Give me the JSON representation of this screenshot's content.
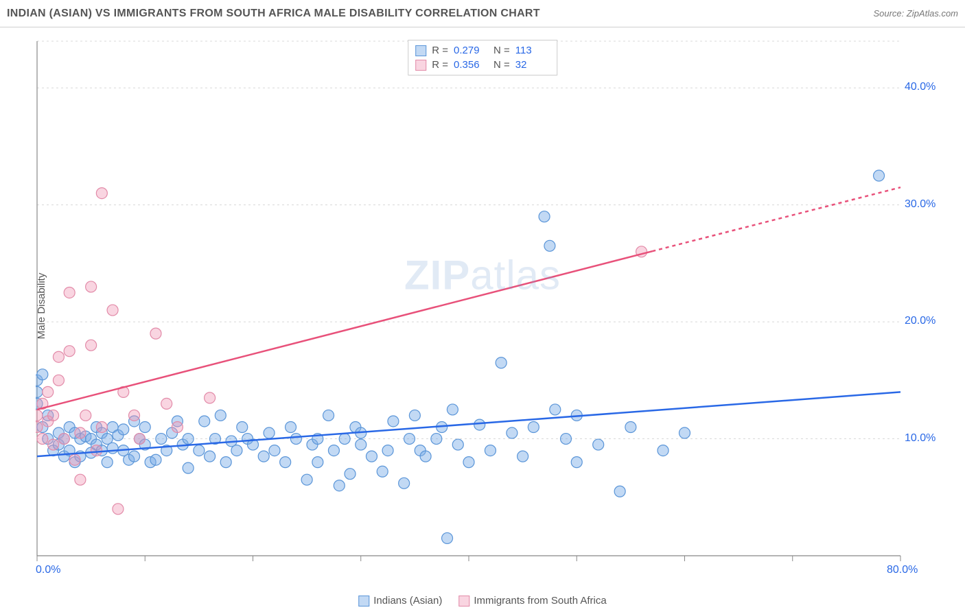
{
  "title": "INDIAN (ASIAN) VS IMMIGRANTS FROM SOUTH AFRICA MALE DISABILITY CORRELATION CHART",
  "source": "Source: ZipAtlas.com",
  "y_axis_label": "Male Disability",
  "watermark_zip": "ZIP",
  "watermark_atlas": "atlas",
  "chart": {
    "type": "scatter",
    "xlim": [
      0,
      80
    ],
    "ylim": [
      0,
      44
    ],
    "x_ticks": [
      0,
      80
    ],
    "x_tick_labels": [
      "0.0%",
      "80.0%"
    ],
    "y_ticks": [
      10,
      20,
      30,
      40
    ],
    "y_tick_labels": [
      "10.0%",
      "20.0%",
      "30.0%",
      "40.0%"
    ],
    "grid_color": "#d8d8d8",
    "axis_color": "#888888",
    "background_color": "#ffffff",
    "tick_label_color": "#2968e6",
    "marker_radius": 8,
    "marker_stroke_width": 1.2,
    "trend_line_width": 2.5,
    "series": [
      {
        "name": "Indians (Asian)",
        "fill_color": "rgba(120,170,230,0.45)",
        "stroke_color": "#5a95d8",
        "trend_color": "#2968e6",
        "R": "0.279",
        "N": "113",
        "trend": {
          "x1": 0,
          "y1": 8.5,
          "x2": 80,
          "y2": 14.0,
          "dashed_from_x": null
        },
        "points": [
          [
            0,
            14
          ],
          [
            0,
            15
          ],
          [
            0,
            13
          ],
          [
            0.5,
            15.5
          ],
          [
            0.5,
            11
          ],
          [
            1,
            10
          ],
          [
            1,
            12
          ],
          [
            1.5,
            9
          ],
          [
            2,
            9.5
          ],
          [
            2,
            10.5
          ],
          [
            2.5,
            8.5
          ],
          [
            2.5,
            10
          ],
          [
            3,
            9
          ],
          [
            3,
            11
          ],
          [
            3.5,
            10.5
          ],
          [
            3.5,
            8
          ],
          [
            4,
            8.5
          ],
          [
            4,
            10
          ],
          [
            4.5,
            10.2
          ],
          [
            5,
            8.8
          ],
          [
            5,
            10
          ],
          [
            5.5,
            9.5
          ],
          [
            5.5,
            11
          ],
          [
            6,
            9
          ],
          [
            6,
            10.5
          ],
          [
            6.5,
            8
          ],
          [
            6.5,
            10
          ],
          [
            7,
            11
          ],
          [
            7,
            9.2
          ],
          [
            7.5,
            10.3
          ],
          [
            8,
            9
          ],
          [
            8,
            10.8
          ],
          [
            8.5,
            8.2
          ],
          [
            9,
            11.5
          ],
          [
            9,
            8.5
          ],
          [
            9.5,
            10
          ],
          [
            10,
            9.5
          ],
          [
            10,
            11
          ],
          [
            10.5,
            8
          ],
          [
            11,
            8.2
          ],
          [
            11.5,
            10
          ],
          [
            12,
            9
          ],
          [
            12.5,
            10.5
          ],
          [
            13,
            11.5
          ],
          [
            13.5,
            9.5
          ],
          [
            14,
            10
          ],
          [
            14,
            7.5
          ],
          [
            15,
            9
          ],
          [
            15.5,
            11.5
          ],
          [
            16,
            8.5
          ],
          [
            16.5,
            10
          ],
          [
            17,
            12
          ],
          [
            17.5,
            8
          ],
          [
            18,
            9.8
          ],
          [
            18.5,
            9
          ],
          [
            19,
            11
          ],
          [
            19.5,
            10
          ],
          [
            20,
            9.5
          ],
          [
            21,
            8.5
          ],
          [
            21.5,
            10.5
          ],
          [
            22,
            9
          ],
          [
            23,
            8
          ],
          [
            23.5,
            11
          ],
          [
            24,
            10
          ],
          [
            25,
            6.5
          ],
          [
            25.5,
            9.5
          ],
          [
            26,
            8
          ],
          [
            26,
            10
          ],
          [
            27,
            12
          ],
          [
            27.5,
            9
          ],
          [
            28,
            6
          ],
          [
            28.5,
            10
          ],
          [
            29,
            7
          ],
          [
            29.5,
            11
          ],
          [
            30,
            9.5
          ],
          [
            30,
            10.5
          ],
          [
            31,
            8.5
          ],
          [
            32,
            7.2
          ],
          [
            32.5,
            9
          ],
          [
            33,
            11.5
          ],
          [
            34,
            6.2
          ],
          [
            34.5,
            10
          ],
          [
            35,
            12
          ],
          [
            35.5,
            9
          ],
          [
            36,
            8.5
          ],
          [
            37,
            10
          ],
          [
            37.5,
            11
          ],
          [
            38,
            1.5
          ],
          [
            38.5,
            12.5
          ],
          [
            39,
            9.5
          ],
          [
            40,
            8
          ],
          [
            41,
            11.2
          ],
          [
            42,
            9
          ],
          [
            43,
            16.5
          ],
          [
            44,
            10.5
          ],
          [
            45,
            8.5
          ],
          [
            46,
            11
          ],
          [
            47,
            29
          ],
          [
            47.5,
            26.5
          ],
          [
            48,
            12.5
          ],
          [
            49,
            10
          ],
          [
            50,
            8
          ],
          [
            50,
            12
          ],
          [
            52,
            9.5
          ],
          [
            54,
            5.5
          ],
          [
            55,
            11
          ],
          [
            58,
            9
          ],
          [
            60,
            10.5
          ],
          [
            78,
            32.5
          ]
        ]
      },
      {
        "name": "Immigrants from South Africa",
        "fill_color": "rgba(240,150,180,0.40)",
        "stroke_color": "#e28aa8",
        "trend_color": "#e8517a",
        "R": "0.356",
        "N": "32",
        "trend": {
          "x1": 0,
          "y1": 12.5,
          "x2": 80,
          "y2": 31.5,
          "dashed_from_x": 57
        },
        "points": [
          [
            0,
            12
          ],
          [
            0,
            11
          ],
          [
            0.5,
            13
          ],
          [
            0.5,
            10
          ],
          [
            1,
            11.5
          ],
          [
            1,
            14
          ],
          [
            1.5,
            9.5
          ],
          [
            1.5,
            12
          ],
          [
            2,
            17
          ],
          [
            2,
            15
          ],
          [
            2.5,
            10
          ],
          [
            3,
            17.5
          ],
          [
            3,
            22.5
          ],
          [
            3.5,
            8.2
          ],
          [
            4,
            10.5
          ],
          [
            4,
            6.5
          ],
          [
            4.5,
            12
          ],
          [
            5,
            18
          ],
          [
            5,
            23
          ],
          [
            5.5,
            9
          ],
          [
            6,
            11
          ],
          [
            6,
            31
          ],
          [
            7,
            21
          ],
          [
            7.5,
            4
          ],
          [
            8,
            14
          ],
          [
            9,
            12
          ],
          [
            9.5,
            10
          ],
          [
            11,
            19
          ],
          [
            12,
            13
          ],
          [
            13,
            11
          ],
          [
            16,
            13.5
          ],
          [
            56,
            26
          ]
        ]
      }
    ]
  },
  "legend_top": {
    "r_label": "R =",
    "n_label": "N ="
  },
  "legend_bottom": {
    "items": [
      "Indians (Asian)",
      "Immigrants from South Africa"
    ]
  }
}
